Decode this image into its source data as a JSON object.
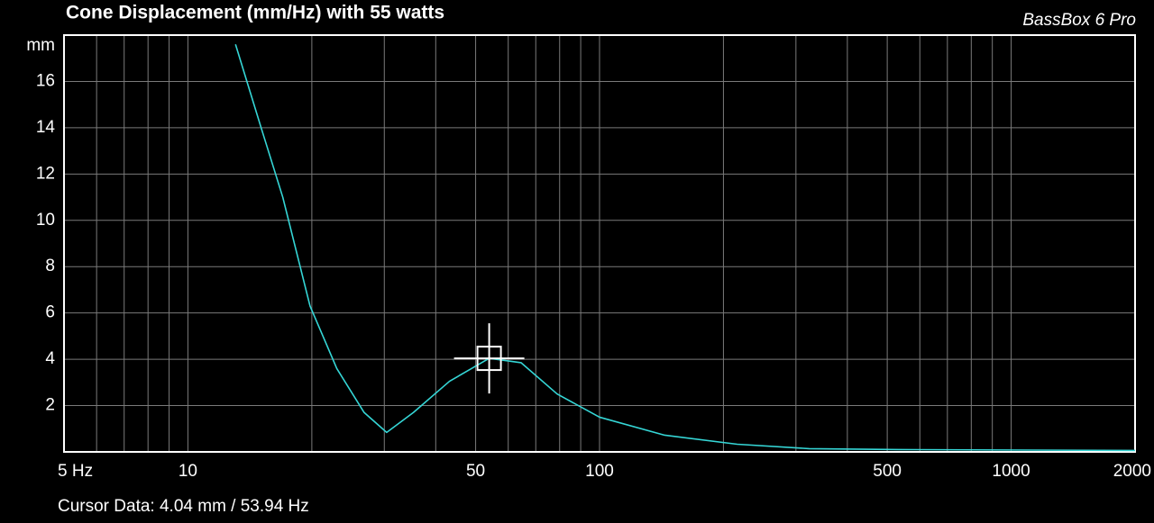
{
  "chart_data": {
    "type": "line",
    "title": "Cone Displacement (mm/Hz) with 55 watts",
    "brand": "BassBox 6 Pro",
    "y_label": "mm",
    "x": [
      13.05,
      15.0,
      17.0,
      19.8,
      23.0,
      26.8,
      30.4,
      35.3,
      43.2,
      53.94,
      64.5,
      78.9,
      100,
      144,
      216,
      323,
      533,
      2000
    ],
    "series": [
      {
        "color": "#35d6d6",
        "values": [
          17.6,
          14.1,
          11.0,
          6.3,
          3.6,
          1.7,
          0.84,
          1.7,
          3.05,
          4.04,
          3.85,
          2.5,
          1.5,
          0.72,
          0.33,
          0.14,
          0.1,
          0.06
        ]
      }
    ],
    "xlog": true,
    "xlim": [
      5,
      2000
    ],
    "ylim": [
      0,
      18
    ],
    "xticks": [
      {
        "value": 5,
        "label": "5 Hz"
      },
      10,
      50,
      100,
      500,
      1000,
      2000
    ],
    "yticks": [
      2,
      4,
      6,
      8,
      10,
      12,
      14,
      16
    ],
    "xgrid": [
      6,
      7,
      8,
      9,
      10,
      20,
      30,
      40,
      50,
      60,
      70,
      80,
      90,
      100,
      200,
      300,
      400,
      500,
      600,
      700,
      800,
      900,
      1000
    ],
    "grid": true,
    "cursor": {
      "x": 53.94,
      "y": 4.04
    },
    "cursor_label": "Cursor Data:  4.04 mm / 53.94 Hz"
  }
}
